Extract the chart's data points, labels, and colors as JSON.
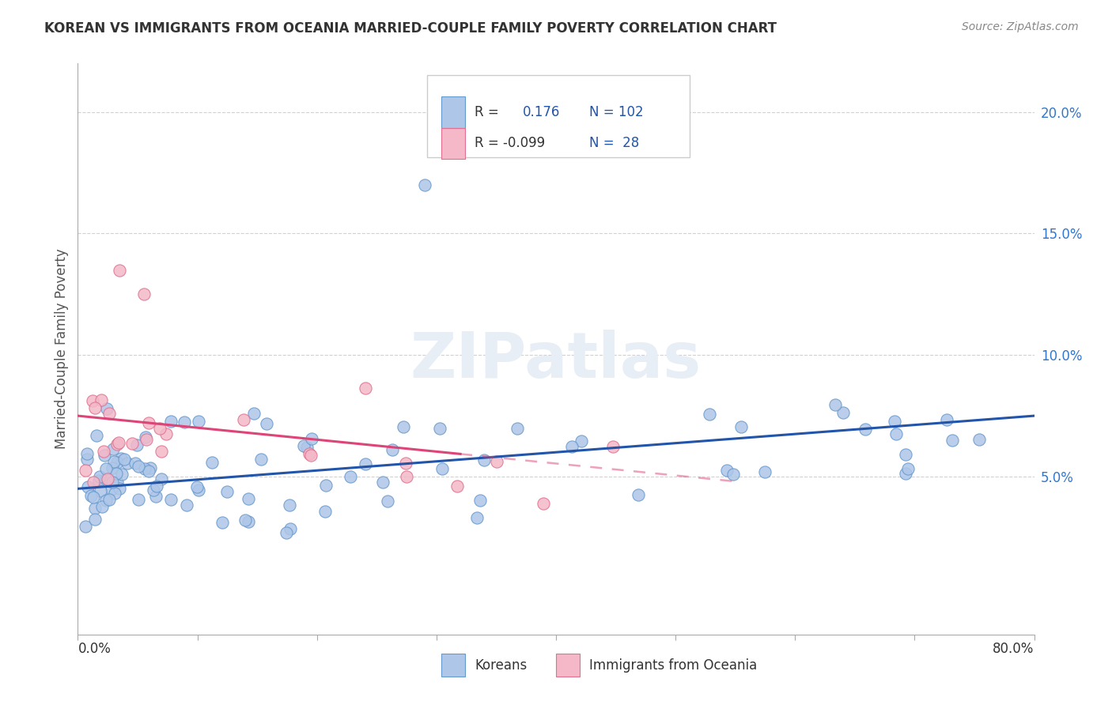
{
  "title": "KOREAN VS IMMIGRANTS FROM OCEANIA MARRIED-COUPLE FAMILY POVERTY CORRELATION CHART",
  "source": "Source: ZipAtlas.com",
  "ylabel": "Married-Couple Family Poverty",
  "xlim": [
    0.0,
    80.0
  ],
  "ylim": [
    -1.5,
    22.0
  ],
  "yticks": [
    5.0,
    10.0,
    15.0,
    20.0
  ],
  "ytick_labels": [
    "5.0%",
    "10.0%",
    "15.0%",
    "20.0%"
  ],
  "blue_color": "#aec6e8",
  "blue_edge_color": "#6699cc",
  "pink_color": "#f4b8c8",
  "pink_edge_color": "#e07090",
  "blue_line_color": "#2255aa",
  "pink_line_color": "#dd4477",
  "pink_line_dash": [
    6,
    4
  ],
  "background_color": "#ffffff",
  "grid_color": "#cccccc",
  "watermark_color": "#e8eef5",
  "title_fontsize": 12,
  "source_fontsize": 10,
  "tick_label_color": "#3377cc",
  "ylabel_color": "#555555",
  "marker_size": 120
}
